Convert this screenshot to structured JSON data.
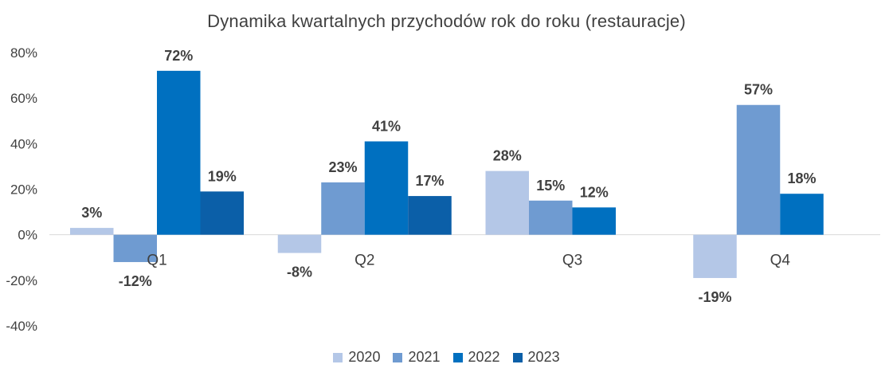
{
  "chart_data": {
    "type": "bar",
    "title": "Dynamika kwartalnych przychodów rok do roku (restauracje)",
    "categories": [
      "Q1",
      "Q2",
      "Q3",
      "Q4"
    ],
    "series": [
      {
        "name": "2020",
        "color": "#b4c7e7",
        "values": [
          3,
          -8,
          28,
          -19
        ],
        "labels": [
          "3%",
          "-8%",
          "28%",
          "-19%"
        ]
      },
      {
        "name": "2021",
        "color": "#6f9bd1",
        "values": [
          -12,
          23,
          15,
          57
        ],
        "labels": [
          "-12%",
          "23%",
          "15%",
          "57%"
        ]
      },
      {
        "name": "2022",
        "color": "#0070c0",
        "values": [
          72,
          41,
          12,
          18
        ],
        "labels": [
          "72%",
          "41%",
          "12%",
          "18%"
        ]
      },
      {
        "name": "2023",
        "color": "#0b5fa8",
        "values": [
          19,
          17,
          null,
          null
        ],
        "labels": [
          "19%",
          "17%",
          "",
          ""
        ]
      }
    ],
    "yticks": [
      "80%",
      "60%",
      "40%",
      "20%",
      "0%",
      "-20%",
      "-40%"
    ],
    "ytick_values": [
      80,
      60,
      40,
      20,
      0,
      -20,
      -40
    ],
    "ylim": [
      -40,
      80
    ],
    "grid": false,
    "legend_position": "bottom"
  }
}
